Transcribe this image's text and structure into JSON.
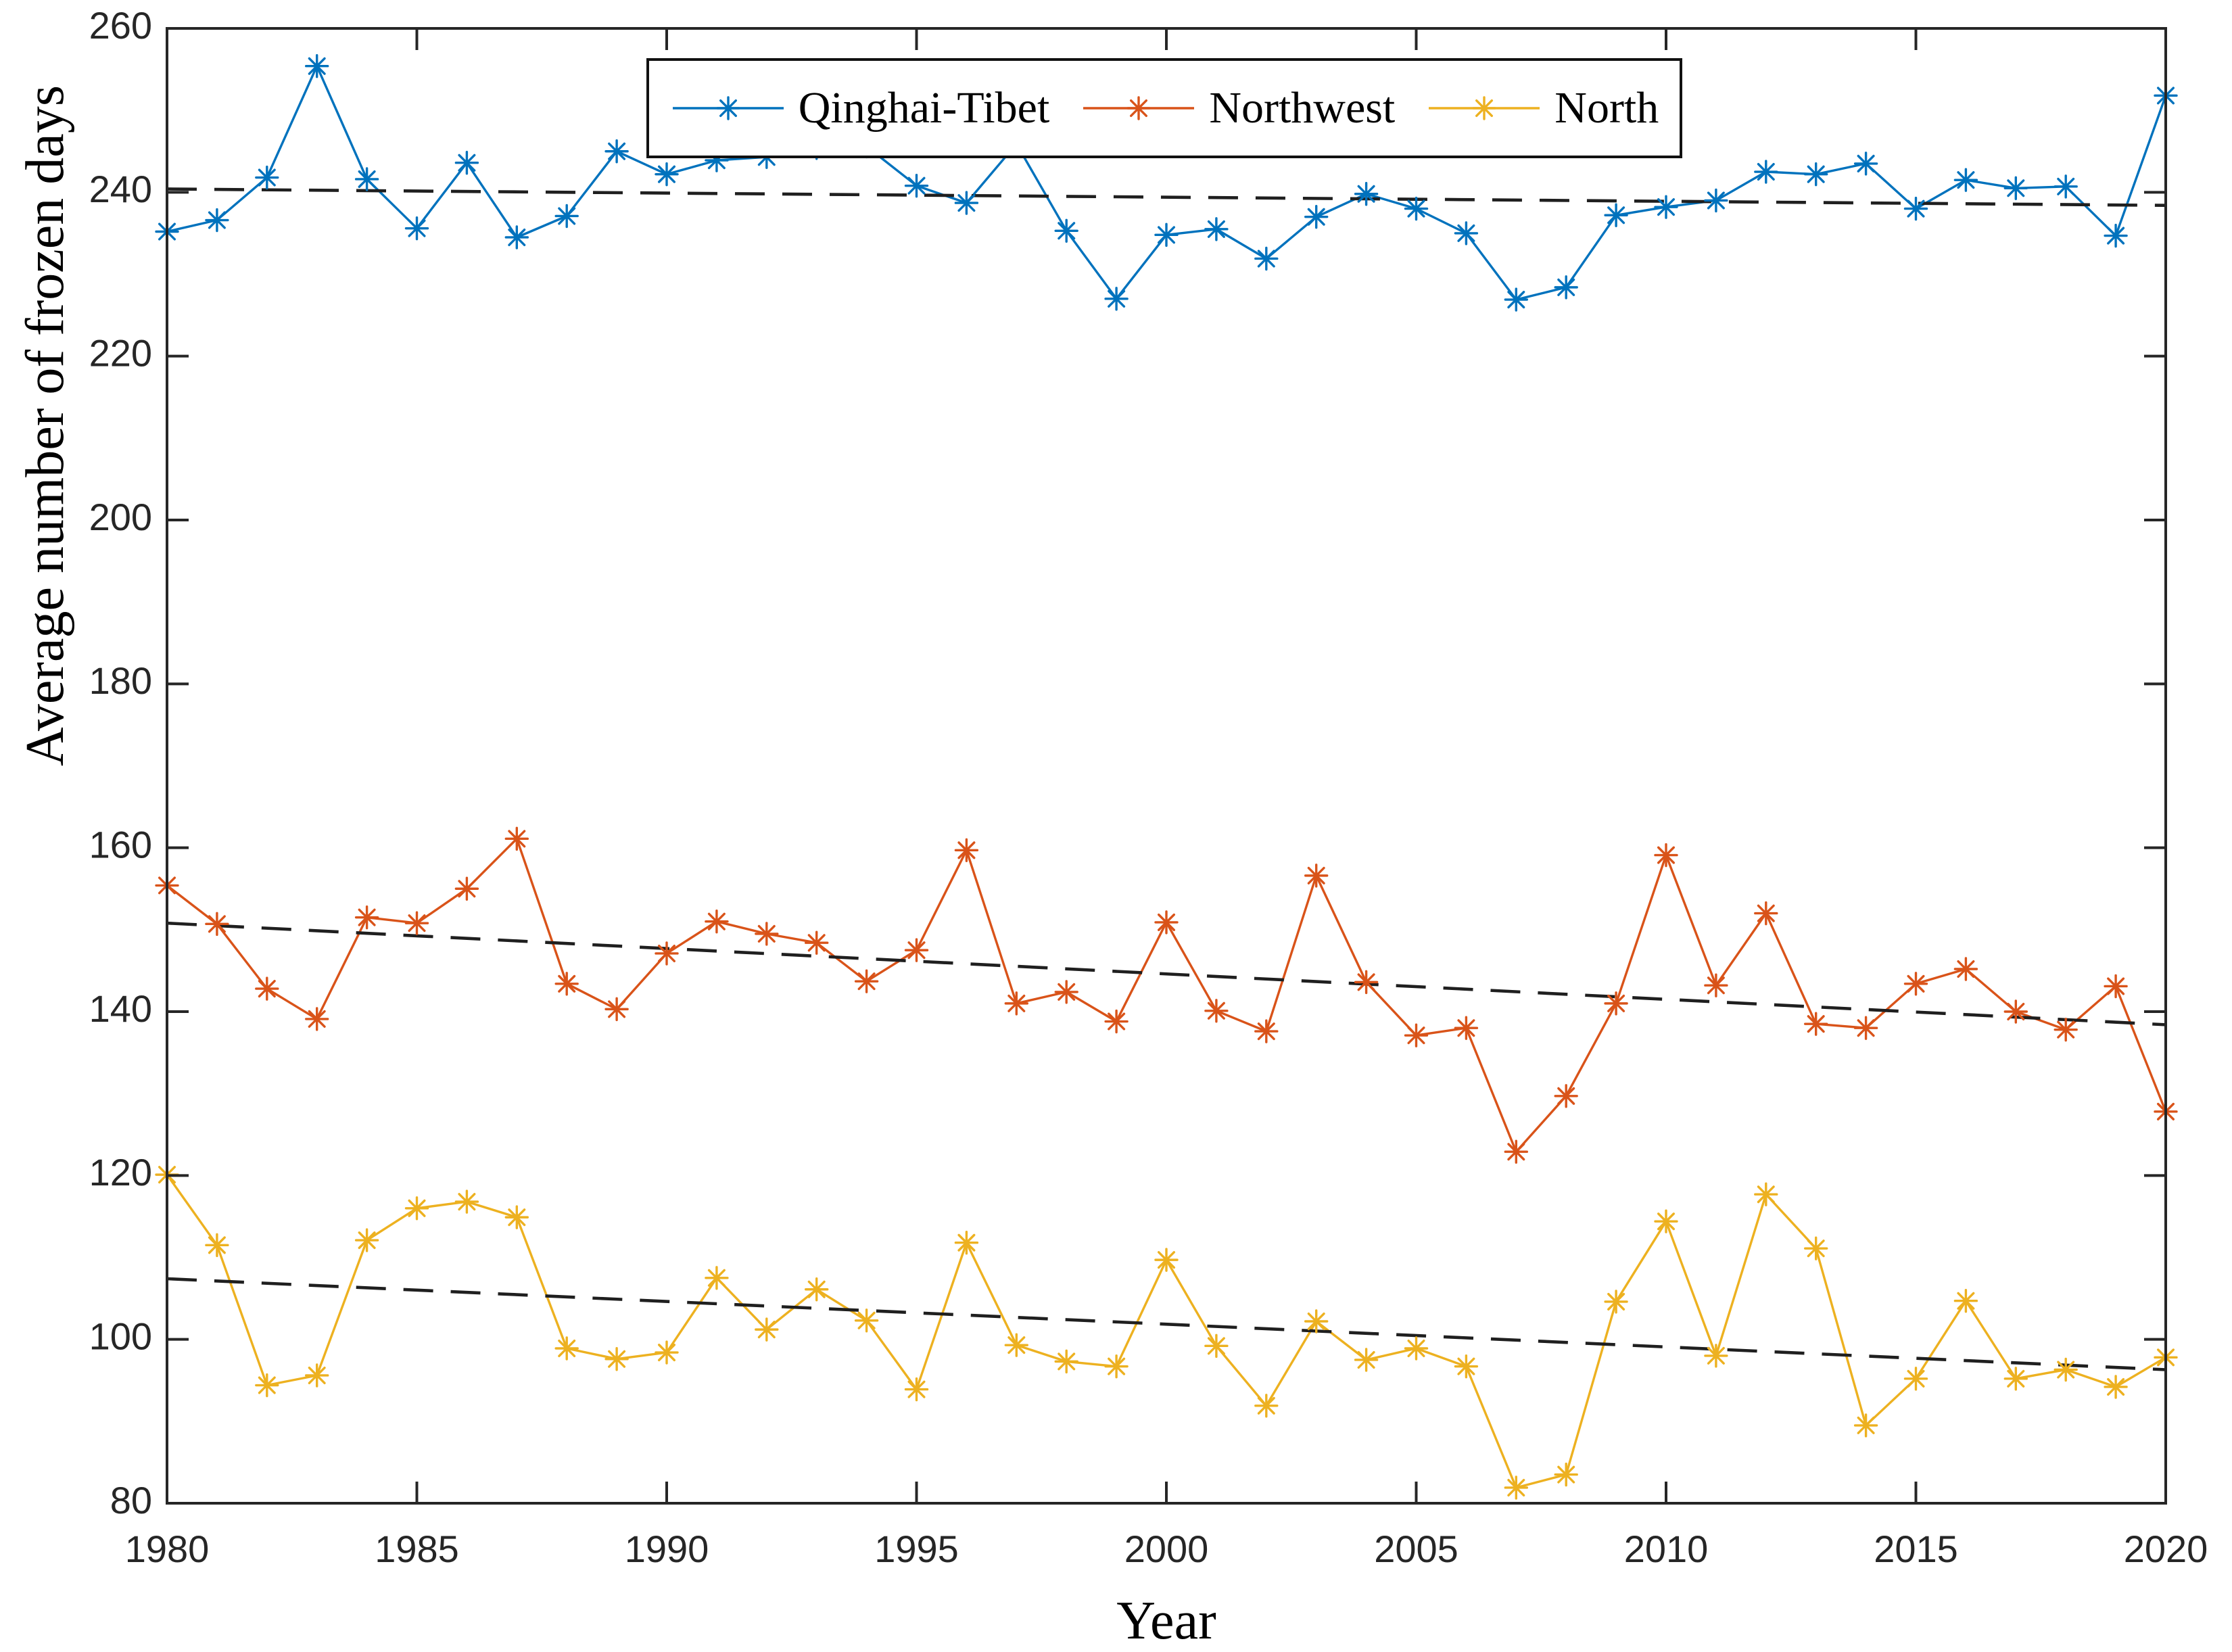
{
  "chart_data": {
    "type": "line",
    "title": "",
    "xlabel": "Year",
    "ylabel": "Average number of frozen days",
    "xlim": [
      1980,
      2020
    ],
    "ylim": [
      80,
      260
    ],
    "xticks": [
      1980,
      1985,
      1990,
      1995,
      2000,
      2005,
      2010,
      2015,
      2020
    ],
    "yticks": [
      80,
      100,
      120,
      140,
      160,
      180,
      200,
      220,
      240,
      260
    ],
    "grid": false,
    "legend_position": "top-center-inside",
    "axis_color": "#262626",
    "trend_style": {
      "color": "#1f1f1f",
      "dash": "44 26"
    },
    "x": [
      1980,
      1981,
      1982,
      1983,
      1984,
      1985,
      1986,
      1987,
      1988,
      1989,
      1990,
      1991,
      1992,
      1993,
      1994,
      1995,
      1996,
      1997,
      1998,
      1999,
      2000,
      2001,
      2002,
      2003,
      2004,
      2005,
      2006,
      2007,
      2008,
      2009,
      2010,
      2011,
      2012,
      2013,
      2014,
      2015,
      2016,
      2017,
      2018,
      2019,
      2020
    ],
    "series": [
      {
        "name": "Qinghai-Tibet",
        "color": "#0072BD",
        "values": [
          235.2,
          236.6,
          241.8,
          255.4,
          241.6,
          235.6,
          243.6,
          234.5,
          237.1,
          245.0,
          242.2,
          243.9,
          244.3,
          245.4,
          245.6,
          240.8,
          238.7,
          245.9,
          235.3,
          227.0,
          234.8,
          235.5,
          231.9,
          237.0,
          239.8,
          238.0,
          235.0,
          226.9,
          228.4,
          237.2,
          238.2,
          239.0,
          242.5,
          242.2,
          243.5,
          238.0,
          241.5,
          240.5,
          240.7,
          234.7,
          251.8
        ],
        "trend": {
          "start": 240.4,
          "end": 238.4
        }
      },
      {
        "name": "Northwest",
        "color": "#D95319",
        "values": [
          155.4,
          150.7,
          142.8,
          139.1,
          151.5,
          150.8,
          155.0,
          161.1,
          143.4,
          140.3,
          147.1,
          151.0,
          149.5,
          148.4,
          143.7,
          147.5,
          159.7,
          141.0,
          142.4,
          138.8,
          150.9,
          140.1,
          137.6,
          156.6,
          143.6,
          137.1,
          138.0,
          122.9,
          129.7,
          141.0,
          159.1,
          143.2,
          152.0,
          138.5,
          138.0,
          143.4,
          145.2,
          140.0,
          137.8,
          143.1,
          127.8
        ],
        "trend": {
          "start": 150.8,
          "end": 138.4
        }
      },
      {
        "name": "North",
        "color": "#EDB120",
        "values": [
          120.1,
          111.5,
          94.4,
          95.6,
          112.1,
          116.0,
          116.8,
          114.9,
          98.9,
          97.6,
          98.4,
          107.5,
          101.2,
          106.1,
          102.3,
          93.9,
          111.8,
          99.3,
          97.3,
          96.7,
          109.7,
          99.2,
          91.9,
          102.2,
          97.5,
          98.9,
          96.7,
          81.9,
          83.5,
          104.6,
          114.4,
          98.0,
          117.7,
          111.1,
          89.5,
          95.2,
          104.7,
          95.2,
          96.3,
          94.2,
          97.8
        ],
        "trend": {
          "start": 107.4,
          "end": 96.3
        }
      }
    ]
  }
}
